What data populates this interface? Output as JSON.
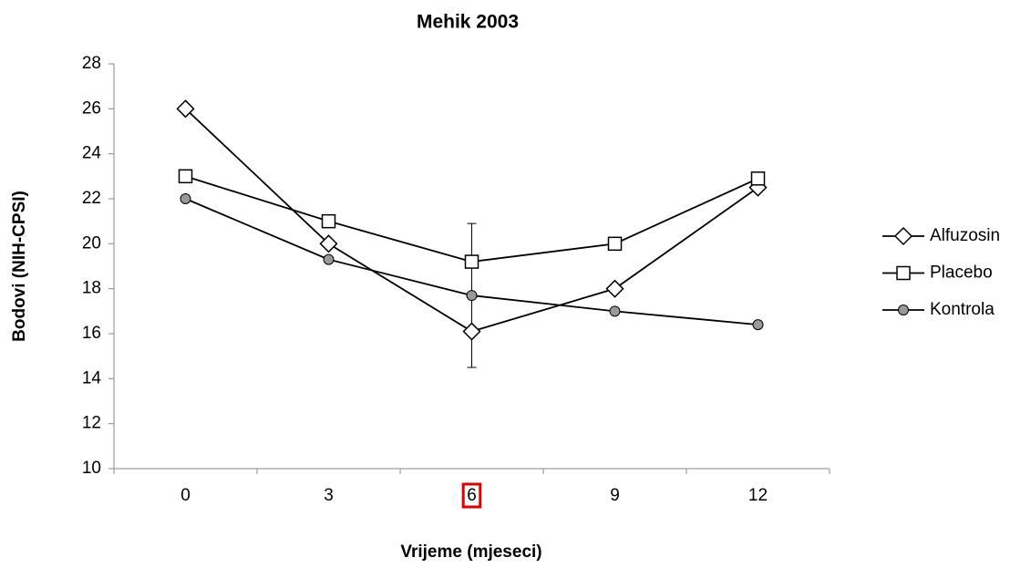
{
  "chart_data": {
    "type": "line",
    "title": "Mehik 2003",
    "x_label": "Vrijeme (mjeseci)",
    "y_label": "Bodovi (NIH-CPSI)",
    "categories": [
      "0",
      "3",
      "6",
      "9",
      "12"
    ],
    "series": [
      {
        "name": "Alfuzosin",
        "color": "#000000",
        "marker": "diamond",
        "marker_fill": "#ffffff",
        "values": [
          26,
          20,
          16.1,
          18,
          22.5
        ]
      },
      {
        "name": "Placebo",
        "color": "#000000",
        "marker": "square",
        "marker_fill": "#ffffff",
        "values": [
          23,
          21,
          19.2,
          20,
          22.9
        ]
      },
      {
        "name": "Kontrola",
        "color": "#000000",
        "marker": "circle",
        "marker_fill": "#999999",
        "values": [
          22,
          19.3,
          17.7,
          17,
          16.4
        ],
        "errors": [
          null,
          null,
          3.2,
          null,
          null
        ]
      }
    ],
    "ylim": [
      10,
      28
    ],
    "yticks": [
      10,
      12,
      14,
      16,
      18,
      20,
      22,
      24,
      26,
      28
    ],
    "legend": "right",
    "highlight_index": 2,
    "highlight_color": "#e00000"
  }
}
